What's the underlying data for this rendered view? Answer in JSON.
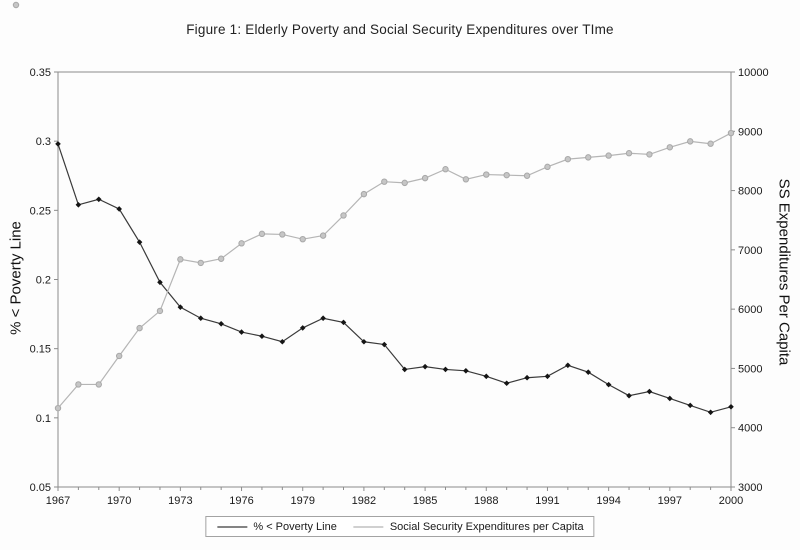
{
  "title": "Figure 1: Elderly Poverty and Social Security Expenditures over TIme",
  "chart_data": {
    "type": "line",
    "title": "Figure 1: Elderly Poverty and Social Security Expenditures over TIme",
    "grid": false,
    "x": [
      1967,
      1968,
      1969,
      1970,
      1971,
      1972,
      1973,
      1974,
      1975,
      1976,
      1977,
      1978,
      1979,
      1980,
      1981,
      1982,
      1983,
      1984,
      1985,
      1986,
      1987,
      1988,
      1989,
      1990,
      1991,
      1992,
      1993,
      1994,
      1995,
      1996,
      1997,
      1998,
      1999,
      2000
    ],
    "series": [
      {
        "name": "% < Poverty Line",
        "axis": "left",
        "marker": "diamond",
        "line_color": "#3a3a3a",
        "marker_color": "#151515",
        "values": [
          0.298,
          0.254,
          0.258,
          0.251,
          0.227,
          0.198,
          0.18,
          0.172,
          0.168,
          0.162,
          0.159,
          0.155,
          0.165,
          0.172,
          0.169,
          0.155,
          0.153,
          0.135,
          0.137,
          0.135,
          0.134,
          0.13,
          0.125,
          0.129,
          0.13,
          0.138,
          0.133,
          0.124,
          0.116,
          0.119,
          0.114,
          0.109,
          0.104,
          0.108
        ]
      },
      {
        "name": "Social Security Expenditures per Capita",
        "axis": "right",
        "marker": "circle",
        "line_color": "#b5b5b5",
        "marker_color": "#c6c6c6",
        "marker_stroke": "#a8a8a8",
        "values": [
          4330,
          4730,
          4730,
          5210,
          5680,
          5970,
          6840,
          6780,
          6850,
          7110,
          7270,
          7260,
          7180,
          7240,
          7580,
          7940,
          8150,
          8130,
          8210,
          8360,
          8190,
          8270,
          8260,
          8250,
          8400,
          8530,
          8560,
          8590,
          8630,
          8610,
          8730,
          8830,
          8790,
          8970
        ]
      }
    ],
    "left_axis": {
      "label": "% < Poverty Line",
      "min": 0.05,
      "max": 0.35,
      "tick_labels": [
        "0.05",
        "0.1",
        "0.15",
        "0.2",
        "0.25",
        "0.3",
        "0.35"
      ]
    },
    "right_axis": {
      "label": "SS Expenditures Per Capita",
      "min": 3000,
      "max": 10000,
      "tick_labels": [
        "3000",
        "4000",
        "5000",
        "6000",
        "7000",
        "8000",
        "9000",
        "10000"
      ]
    },
    "x_axis": {
      "range": [
        1967,
        2000
      ],
      "major_ticks": [
        1967,
        1970,
        1973,
        1976,
        1979,
        1982,
        1985,
        1988,
        1991,
        1994,
        1997,
        2000
      ],
      "minor_tick_every": 1
    },
    "legend": {
      "position": "bottom",
      "entries": [
        "% < Poverty Line",
        "Social Security Expenditures per Capita"
      ]
    },
    "frame_color": "#8c8c8c"
  }
}
